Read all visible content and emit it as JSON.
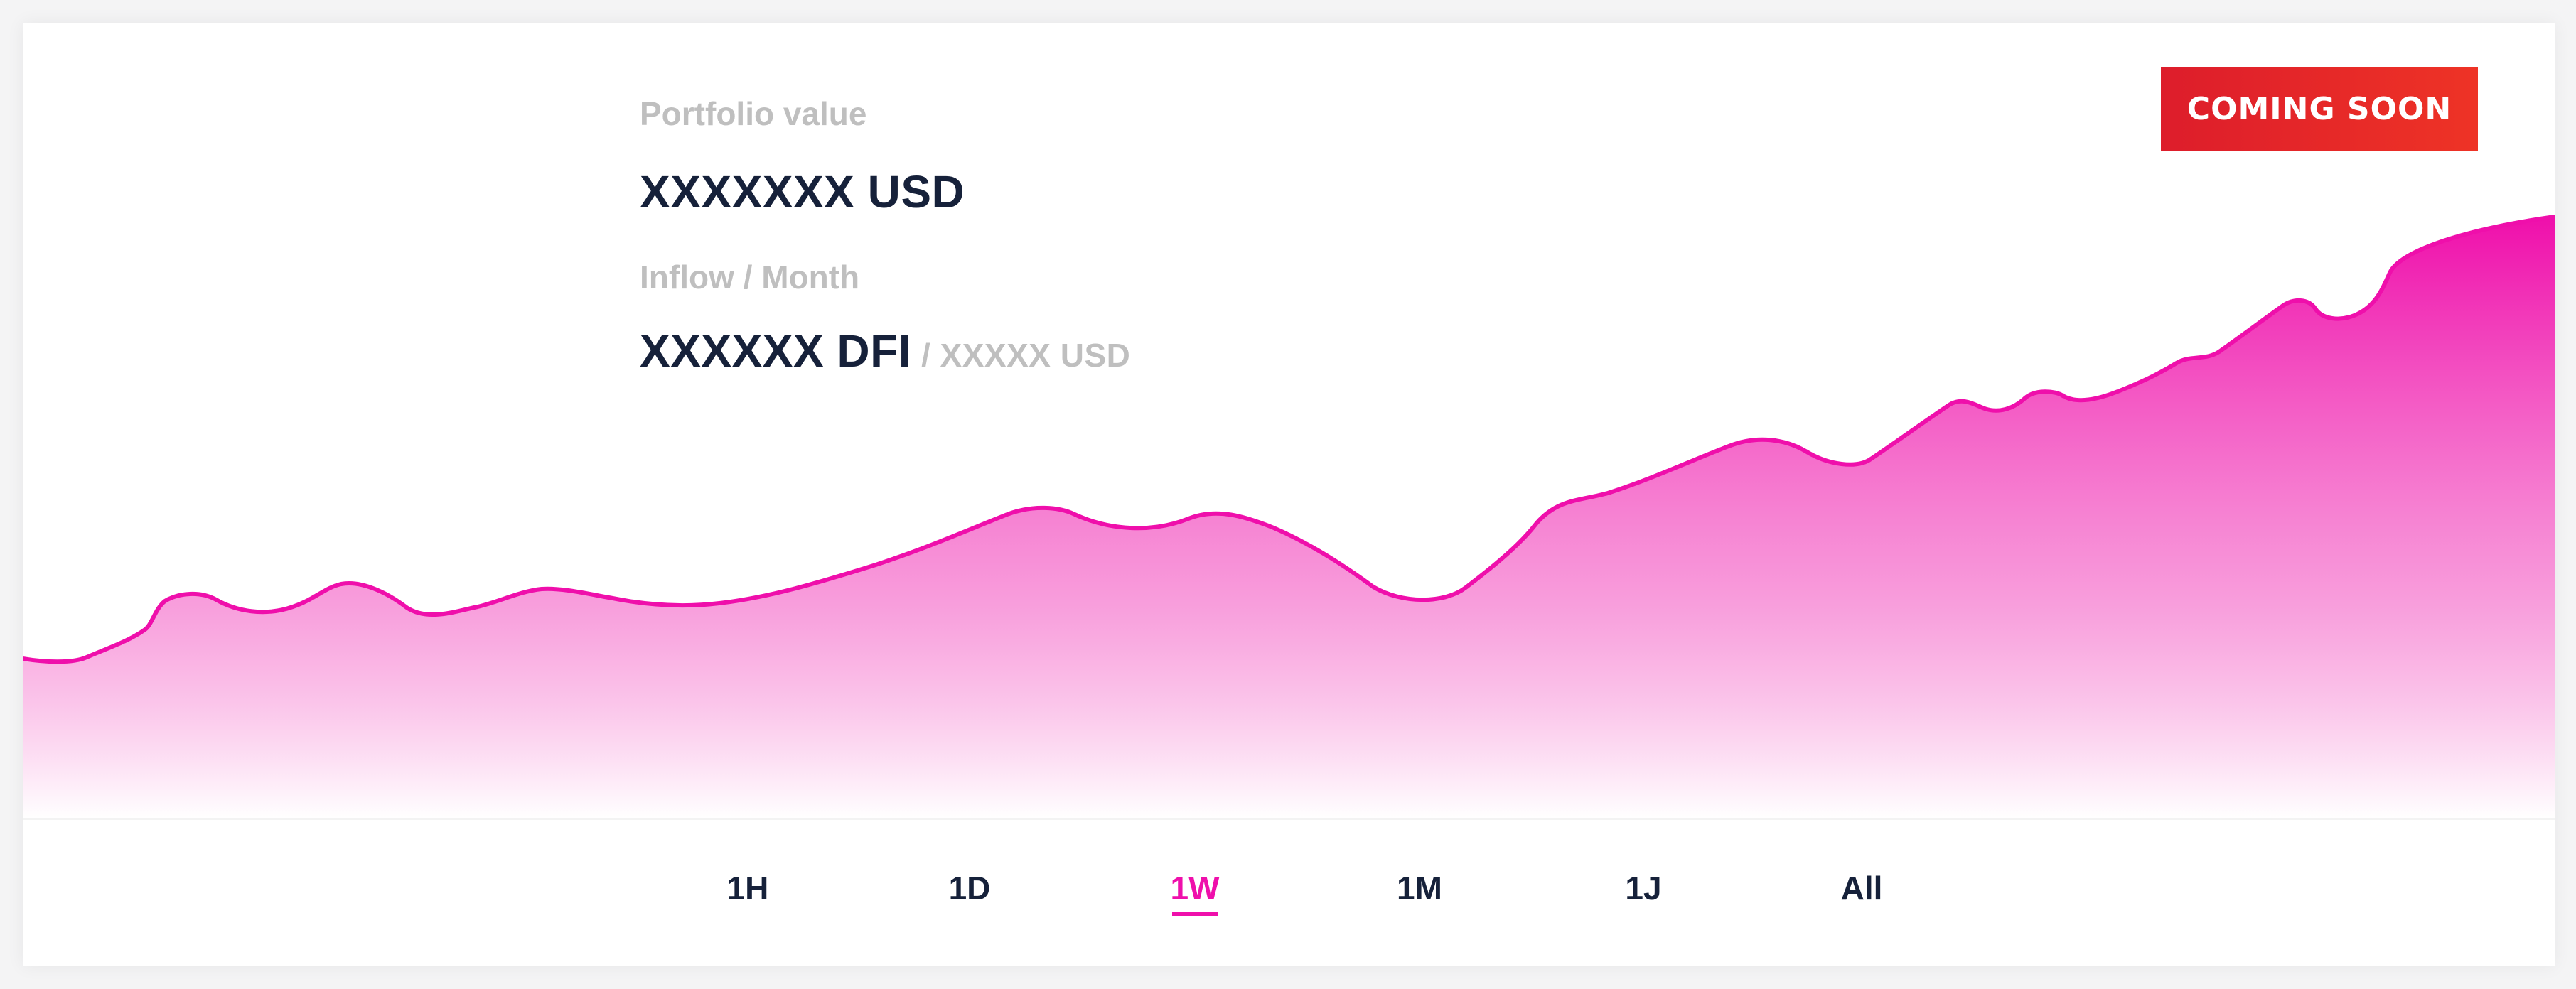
{
  "portfolio": {
    "value_label": "Portfolio value",
    "value": "XXXXXXX USD",
    "inflow_label": "Inflow / Month",
    "inflow_value": "XXXXXX DFI",
    "inflow_sub": "/ XXXXX USD"
  },
  "badge": {
    "label": "COMING SOON"
  },
  "ranges": {
    "tabs": [
      {
        "label": "1H"
      },
      {
        "label": "1D"
      },
      {
        "label": "1W"
      },
      {
        "label": "1M"
      },
      {
        "label": "1J"
      },
      {
        "label": "All"
      }
    ],
    "active": "1W"
  },
  "colors": {
    "accent": "#ef0fab",
    "text_dark": "#16213a",
    "text_muted": "#bfbfbf",
    "badge": "#e42328"
  }
}
